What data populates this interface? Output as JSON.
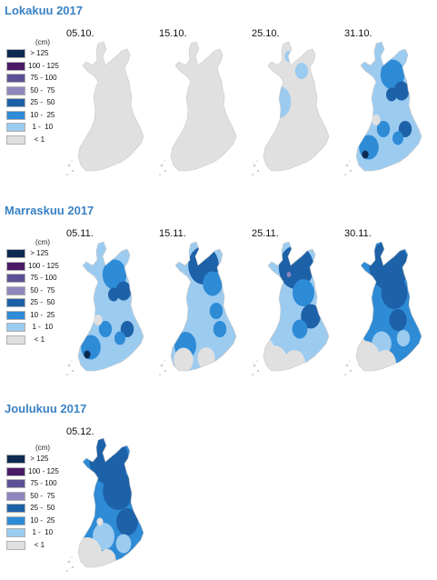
{
  "legend": {
    "unit": "(cm)",
    "classes": [
      {
        "label": " > 125",
        "color": "#0c2a52"
      },
      {
        "label": "100 - 125",
        "color": "#4b1a66"
      },
      {
        "label": " 75 - 100",
        "color": "#5d5195"
      },
      {
        "label": " 50 -  75",
        "color": "#8e86bd"
      },
      {
        "label": " 25 -  50",
        "color": "#1d61a8"
      },
      {
        "label": " 10 -  25",
        "color": "#2e8bd6"
      },
      {
        "label": "  1 -  10",
        "color": "#9ccbf0"
      },
      {
        "label": "   < 1",
        "color": "#e0e0e0"
      }
    ]
  },
  "months": [
    {
      "title": "Lokakuu 2017",
      "maps": [
        {
          "date": "05.10.",
          "level": 0
        },
        {
          "date": "15.10.",
          "level": 0
        },
        {
          "date": "25.10.",
          "level": 1
        },
        {
          "date": "31.10.",
          "level": 2
        }
      ]
    },
    {
      "title": "Marraskuu 2017",
      "maps": [
        {
          "date": "05.11.",
          "level": 2
        },
        {
          "date": "15.11.",
          "level": 3
        },
        {
          "date": "25.11.",
          "level": 4
        },
        {
          "date": "30.11.",
          "level": 5
        }
      ]
    },
    {
      "title": "Joulukuu 2017",
      "maps": [
        {
          "date": "05.12.",
          "level": 6
        }
      ]
    }
  ]
}
